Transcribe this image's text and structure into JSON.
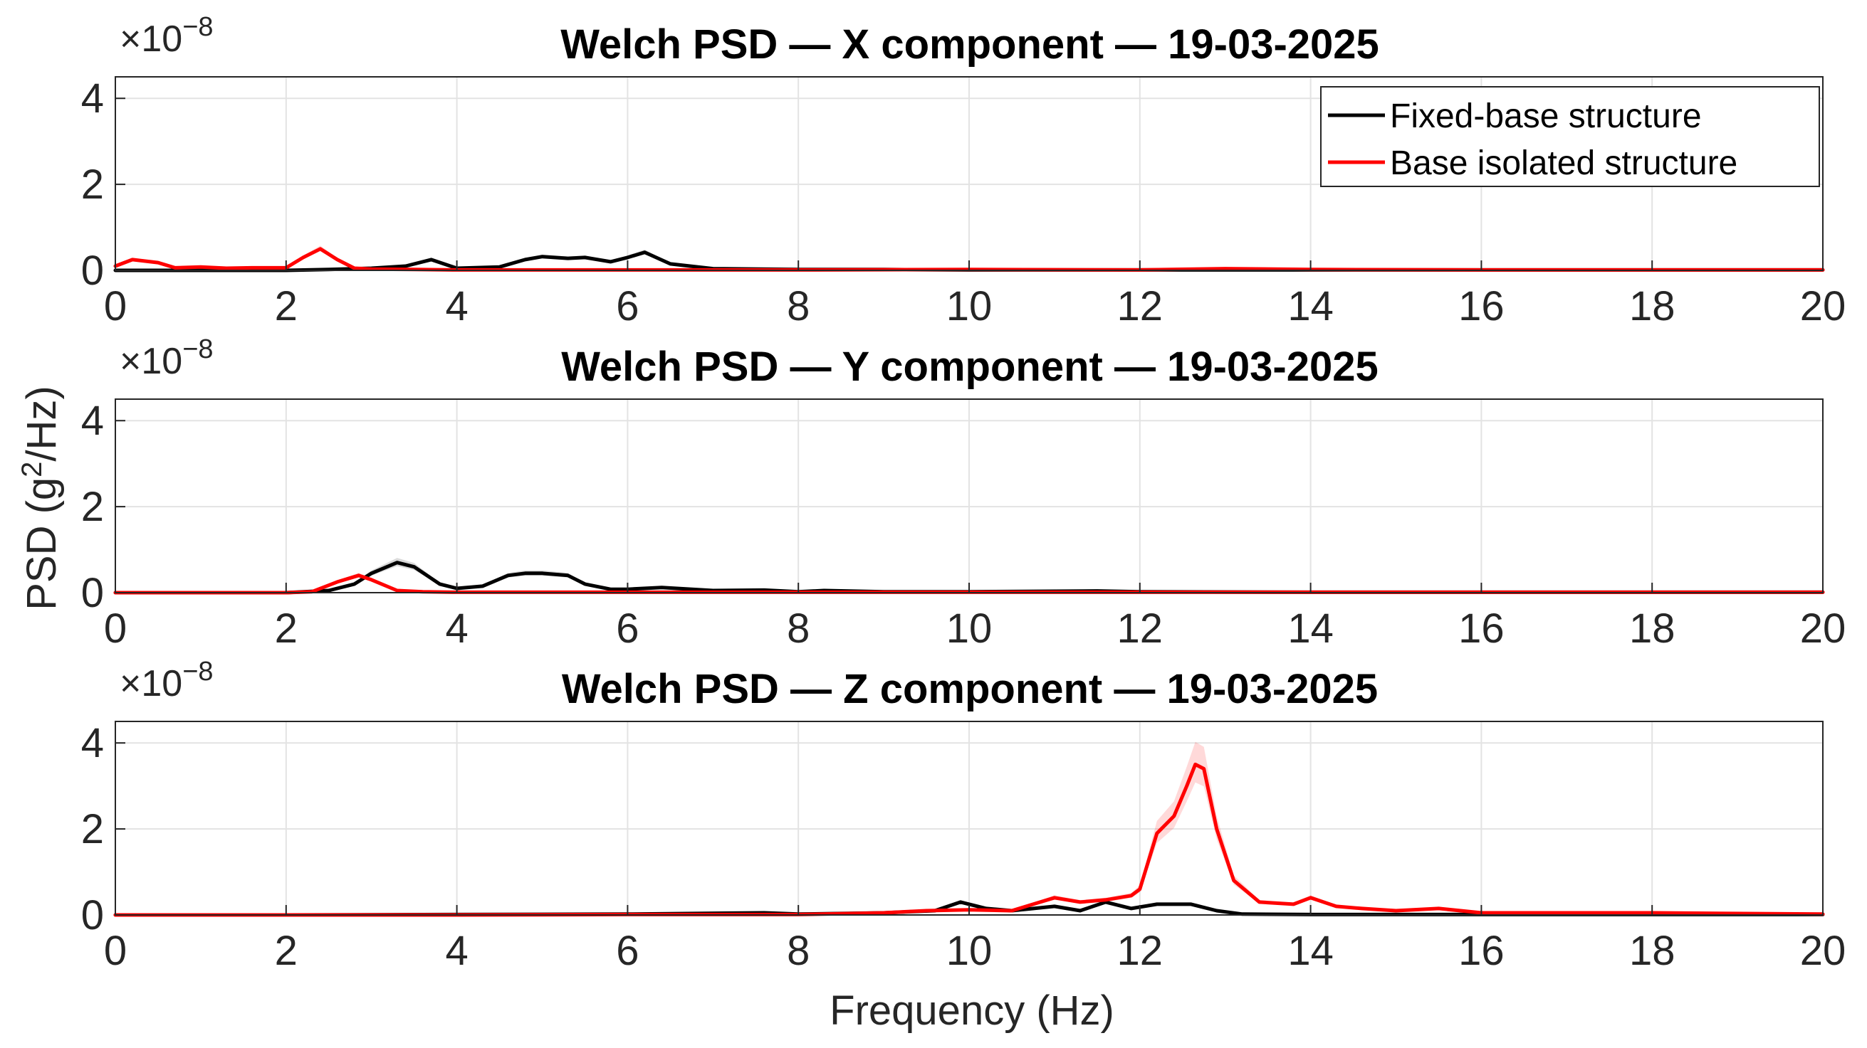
{
  "chart_data": [
    {
      "type": "line",
      "title": "Welch PSD — X component — 19-03-2025",
      "exponent_label": "×10^-8",
      "xlim": [
        0,
        20
      ],
      "ylim": [
        0,
        4.5
      ],
      "xticks": [
        0,
        2,
        4,
        6,
        8,
        10,
        12,
        14,
        16,
        18,
        20
      ],
      "yticks": [
        0,
        2,
        4
      ],
      "grid": true,
      "legend": {
        "placement": "top-right",
        "entries": [
          "Fixed-base structure",
          "Base isolated structure"
        ]
      },
      "series": [
        {
          "name": "Fixed-base structure",
          "color": "#000000",
          "x": [
            0,
            2,
            2.5,
            3,
            3.4,
            3.7,
            4.0,
            4.5,
            4.8,
            5.0,
            5.3,
            5.5,
            5.8,
            6.0,
            6.2,
            6.5,
            7.0,
            8,
            9,
            10,
            12,
            14,
            16,
            18,
            20
          ],
          "y": [
            0,
            0,
            0.02,
            0.05,
            0.1,
            0.25,
            0.05,
            0.08,
            0.25,
            0.32,
            0.28,
            0.3,
            0.2,
            0.3,
            0.42,
            0.15,
            0.04,
            0.02,
            0.02,
            0.01,
            0.01,
            0.01,
            0.01,
            0.01,
            0.01
          ]
        },
        {
          "name": "Base isolated structure",
          "color": "#ff0000",
          "x": [
            0,
            0.2,
            0.5,
            0.7,
            1.0,
            1.3,
            1.6,
            2.0,
            2.2,
            2.4,
            2.6,
            2.8,
            3.0,
            3.5,
            4.0,
            6,
            8,
            10,
            12,
            13,
            14,
            16,
            18,
            20
          ],
          "y": [
            0.1,
            0.25,
            0.18,
            0.06,
            0.08,
            0.05,
            0.06,
            0.06,
            0.3,
            0.5,
            0.25,
            0.05,
            0.03,
            0.02,
            0.01,
            0.01,
            0.01,
            0.02,
            0.01,
            0.04,
            0.02,
            0.01,
            0.01,
            0.01
          ]
        }
      ]
    },
    {
      "type": "line",
      "title": "Welch PSD — Y component — 19-03-2025",
      "exponent_label": "×10^-8",
      "xlim": [
        0,
        20
      ],
      "ylim": [
        0,
        4.5
      ],
      "xticks": [
        0,
        2,
        4,
        6,
        8,
        10,
        12,
        14,
        16,
        18,
        20
      ],
      "yticks": [
        0,
        2,
        4
      ],
      "grid": true,
      "series": [
        {
          "name": "Fixed-base structure",
          "color": "#000000",
          "x": [
            0,
            2,
            2.5,
            2.8,
            3.0,
            3.3,
            3.5,
            3.8,
            4.0,
            4.3,
            4.6,
            4.8,
            5.0,
            5.3,
            5.5,
            5.8,
            6.0,
            6.4,
            7.0,
            7.6,
            8.0,
            8.3,
            9,
            10,
            11.5,
            12,
            14,
            16,
            18,
            20
          ],
          "y": [
            0,
            0,
            0.05,
            0.2,
            0.45,
            0.7,
            0.6,
            0.2,
            0.1,
            0.15,
            0.4,
            0.45,
            0.45,
            0.4,
            0.2,
            0.08,
            0.08,
            0.12,
            0.05,
            0.06,
            0.02,
            0.05,
            0.02,
            0.02,
            0.04,
            0.02,
            0.01,
            0.01,
            0.01,
            0.01
          ]
        },
        {
          "name": "Base isolated structure",
          "color": "#ff0000",
          "x": [
            0,
            2,
            2.3,
            2.6,
            2.85,
            3.0,
            3.3,
            3.6,
            4.0,
            5,
            6,
            8,
            10,
            12,
            14,
            16,
            18,
            20
          ],
          "y": [
            0,
            0,
            0.02,
            0.25,
            0.4,
            0.3,
            0.05,
            0.02,
            0.01,
            0.01,
            0.01,
            0.01,
            0.01,
            0.01,
            0.01,
            0.01,
            0.01,
            0.01
          ]
        }
      ]
    },
    {
      "type": "line",
      "title": "Welch PSD — Z component — 19-03-2025",
      "exponent_label": "×10^-8",
      "xlabel": "Frequency (Hz)",
      "xlim": [
        0,
        20
      ],
      "ylim": [
        0,
        4.5
      ],
      "xticks": [
        0,
        2,
        4,
        6,
        8,
        10,
        12,
        14,
        16,
        18,
        20
      ],
      "yticks": [
        0,
        2,
        4
      ],
      "grid": true,
      "series": [
        {
          "name": "Fixed-base structure",
          "color": "#000000",
          "x": [
            0,
            2,
            4,
            6,
            7.6,
            8,
            9,
            9.6,
            9.9,
            10.2,
            10.5,
            11,
            11.3,
            11.6,
            11.9,
            12.2,
            12.6,
            12.9,
            13.2,
            14,
            16,
            18,
            20
          ],
          "y": [
            0,
            0,
            0.01,
            0.02,
            0.05,
            0.02,
            0.05,
            0.1,
            0.3,
            0.15,
            0.1,
            0.2,
            0.1,
            0.3,
            0.15,
            0.25,
            0.25,
            0.1,
            0.02,
            0.01,
            0.01,
            0.01,
            0.01
          ]
        },
        {
          "name": "Base isolated structure",
          "color": "#ff0000",
          "x": [
            0,
            4,
            6,
            8,
            9,
            9.5,
            10,
            10.5,
            11,
            11.3,
            11.6,
            11.9,
            12.0,
            12.2,
            12.4,
            12.55,
            12.65,
            12.75,
            12.9,
            13.1,
            13.4,
            13.8,
            14.0,
            14.3,
            14.6,
            15,
            15.5,
            16,
            17,
            18,
            20
          ],
          "y": [
            0,
            0,
            0.01,
            0.01,
            0.05,
            0.1,
            0.12,
            0.1,
            0.4,
            0.3,
            0.35,
            0.45,
            0.6,
            1.9,
            2.3,
            3.0,
            3.5,
            3.4,
            2.0,
            0.8,
            0.3,
            0.25,
            0.4,
            0.2,
            0.15,
            0.1,
            0.15,
            0.05,
            0.05,
            0.05,
            0.02
          ]
        }
      ]
    }
  ],
  "shared_ylabel": "PSD  (g²/Hz)"
}
